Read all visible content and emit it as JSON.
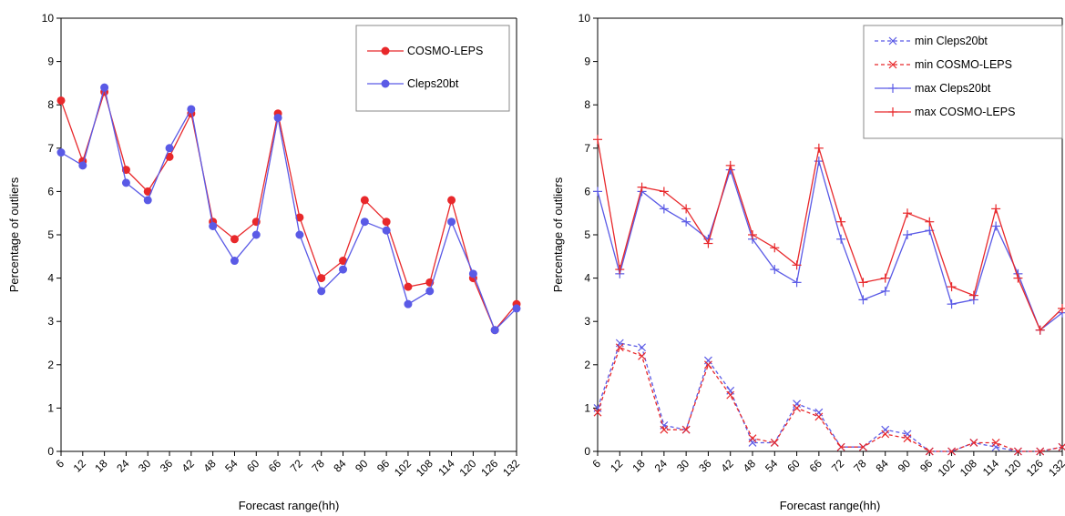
{
  "chart_data": [
    {
      "type": "line",
      "xlabel": "Forecast range(hh)",
      "ylabel": "Percentage of outliers",
      "ylim": [
        0,
        10
      ],
      "yticks": [
        0,
        1,
        2,
        3,
        4,
        5,
        6,
        7,
        8,
        9,
        10
      ],
      "categories": [
        "6",
        "12",
        "18",
        "24",
        "30",
        "36",
        "42",
        "48",
        "54",
        "60",
        "66",
        "72",
        "78",
        "84",
        "90",
        "96",
        "102",
        "108",
        "114",
        "120",
        "126",
        "132"
      ],
      "legend_position": "top-right",
      "series": [
        {
          "name": "COSMO-LEPS",
          "color": "#e8282b",
          "marker": "circle",
          "dash": "solid",
          "values": [
            8.1,
            6.7,
            8.3,
            6.5,
            6.0,
            6.8,
            7.8,
            5.3,
            4.9,
            5.3,
            7.8,
            5.4,
            4.0,
            4.4,
            5.8,
            5.3,
            3.8,
            3.9,
            5.8,
            4.0,
            2.8,
            3.4
          ]
        },
        {
          "name": "Cleps20bt",
          "color": "#5a5ae6",
          "marker": "circle",
          "dash": "solid",
          "values": [
            6.9,
            6.6,
            8.4,
            6.2,
            5.8,
            7.0,
            7.9,
            5.2,
            4.4,
            5.0,
            7.7,
            5.0,
            3.7,
            4.2,
            5.3,
            5.1,
            3.4,
            3.7,
            5.3,
            4.1,
            2.8,
            3.3
          ]
        }
      ]
    },
    {
      "type": "line",
      "xlabel": "Forecast range(hh)",
      "ylabel": "Percentage of outliers",
      "ylim": [
        0,
        10
      ],
      "yticks": [
        0,
        1,
        2,
        3,
        4,
        5,
        6,
        7,
        8,
        9,
        10
      ],
      "categories": [
        "6",
        "12",
        "18",
        "24",
        "30",
        "36",
        "42",
        "48",
        "54",
        "60",
        "66",
        "72",
        "78",
        "84",
        "90",
        "96",
        "102",
        "108",
        "114",
        "120",
        "126",
        "132"
      ],
      "legend_position": "top-right",
      "series": [
        {
          "name": "min Cleps20bt",
          "color": "#5a5ae6",
          "marker": "x",
          "dash": "dashed",
          "values": [
            1.0,
            2.5,
            2.4,
            0.6,
            0.5,
            2.1,
            1.4,
            0.2,
            0.2,
            1.1,
            0.9,
            0.1,
            0.1,
            0.5,
            0.4,
            0.0,
            0.0,
            0.2,
            0.1,
            0.0,
            0.0,
            0.1
          ]
        },
        {
          "name": "min COSMO-LEPS",
          "color": "#e8282b",
          "marker": "x",
          "dash": "dashed",
          "values": [
            0.9,
            2.4,
            2.2,
            0.5,
            0.5,
            2.0,
            1.3,
            0.3,
            0.2,
            1.0,
            0.8,
            0.1,
            0.1,
            0.4,
            0.3,
            0.0,
            0.0,
            0.2,
            0.2,
            0.0,
            0.0,
            0.1
          ]
        },
        {
          "name": "max Cleps20bt",
          "color": "#5a5ae6",
          "marker": "plus",
          "dash": "solid",
          "values": [
            6.0,
            4.1,
            6.0,
            5.6,
            5.3,
            4.9,
            6.5,
            4.9,
            4.2,
            3.9,
            6.7,
            4.9,
            3.5,
            3.7,
            5.0,
            5.1,
            3.4,
            3.5,
            5.2,
            4.1,
            2.8,
            3.2
          ]
        },
        {
          "name": "max COSMO-LEPS",
          "color": "#e8282b",
          "marker": "plus",
          "dash": "solid",
          "values": [
            7.2,
            4.2,
            6.1,
            6.0,
            5.6,
            4.8,
            6.6,
            5.0,
            4.7,
            4.3,
            7.0,
            5.3,
            3.9,
            4.0,
            5.5,
            5.3,
            3.8,
            3.6,
            5.6,
            4.0,
            2.8,
            3.3
          ]
        }
      ]
    }
  ]
}
